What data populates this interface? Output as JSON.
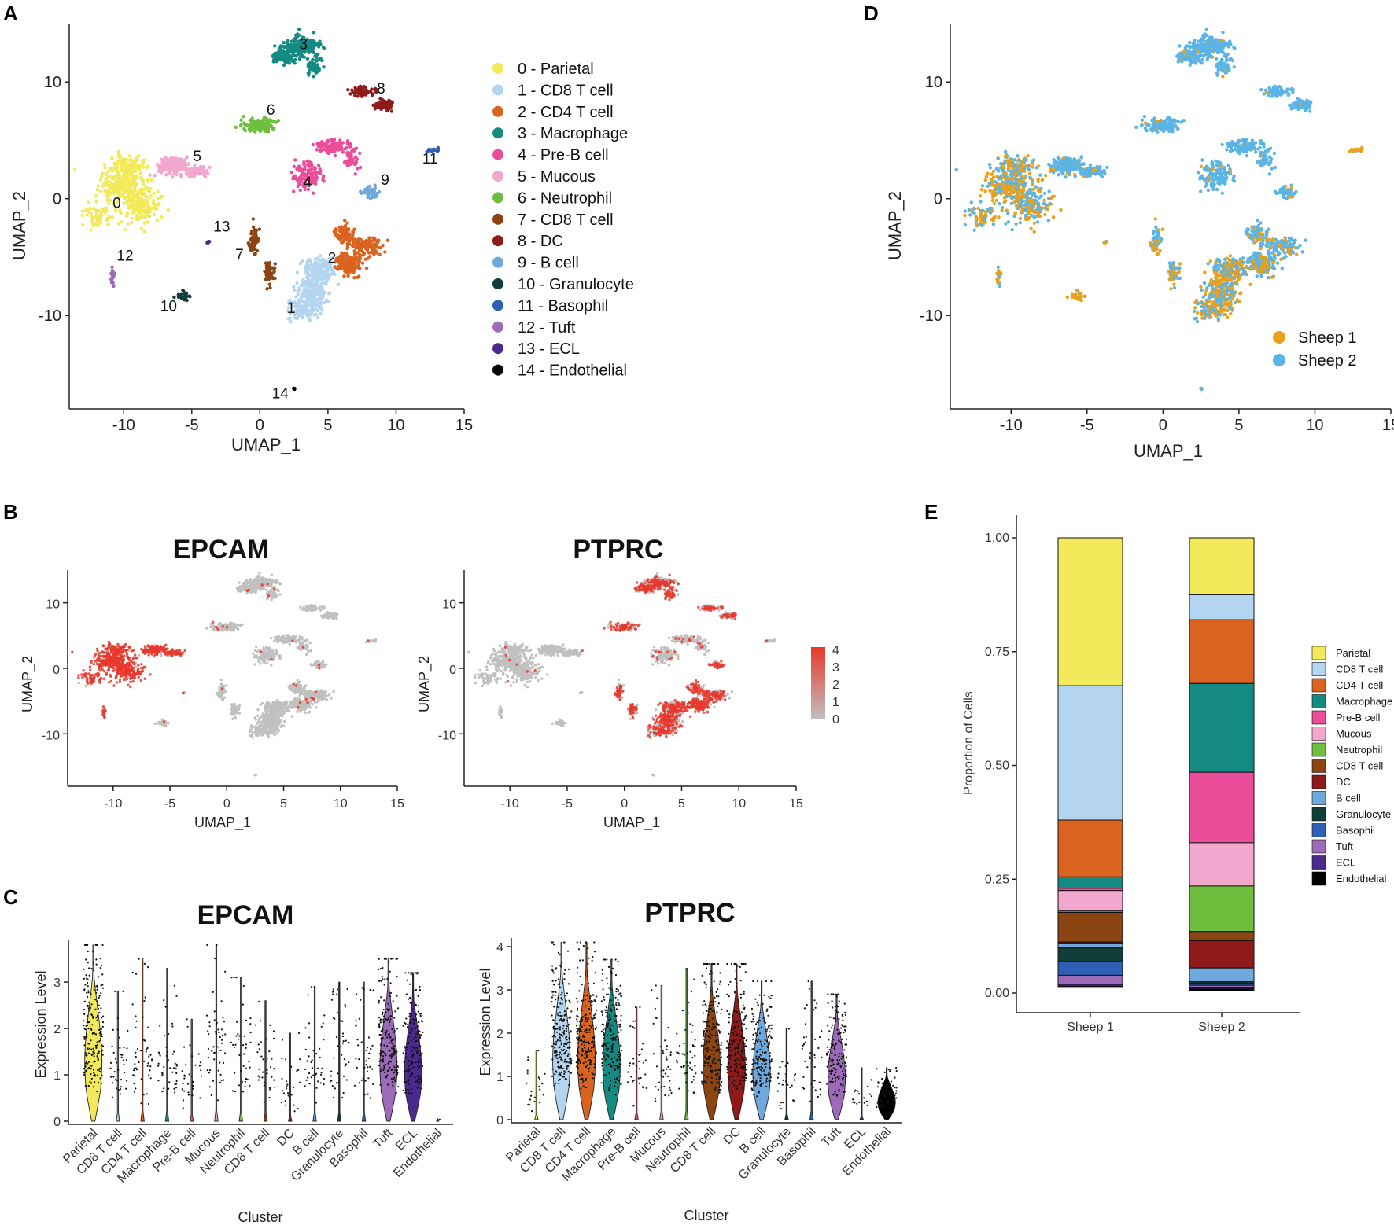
{
  "panels": {
    "A": "A",
    "B": "B",
    "C": "C",
    "D": "D",
    "E": "E"
  },
  "colors": {
    "Parietal": "#f2ea5a",
    "CD8 T cell": "#b3d5f0",
    "CD4 T cell": "#d9631f",
    "Macrophage": "#148a82",
    "Pre-B cell": "#ea4d9a",
    "Mucous": "#f2a8cc",
    "Neutrophil": "#6fbf3f",
    "CD8 T cell (7)": "#8b4513",
    "DC": "#8e1a1a",
    "B cell": "#6ea8dc",
    "Granulocyte": "#123e3a",
    "Basophil": "#2f5fb5",
    "Tuft": "#9b6ab8",
    "ECL": "#4b2a8e",
    "Endothelial": "#000000",
    "Sheep 1": "#e8a11f",
    "Sheep 2": "#5ab4e5",
    "feature_low": "#c0c0c0",
    "feature_high": "#e8372c"
  },
  "umap_axes": {
    "xlabel": "UMAP_1",
    "ylabel": "UMAP_2",
    "xticks": [
      -10,
      -5,
      0,
      5,
      10,
      15
    ],
    "yticks": [
      10,
      0,
      -10
    ],
    "xlim": [
      -14,
      15
    ],
    "ylim": [
      -18,
      15
    ]
  },
  "chart_data": [
    {
      "id": "A",
      "type": "scatter",
      "title": "",
      "xlabel": "UMAP_1",
      "ylabel": "UMAP_2",
      "legend": [
        "0 - Parietal",
        "1 - CD8 T cell",
        "2 - CD4 T cell",
        "3 - Macrophage",
        "4 - Pre-B cell",
        "5 - Mucous",
        "6 - Neutrophil",
        "7 - CD8 T cell",
        "8 - DC",
        "9 - B cell",
        "10 - Granulocyte",
        "11 - Basophil",
        "12 - Tuft",
        "13 - ECL",
        "14 - Endothelial"
      ],
      "cluster_labels": [
        {
          "label": "0",
          "x": -10.5,
          "y": -0.8
        },
        {
          "label": "1",
          "x": 2.3,
          "y": -9.8
        },
        {
          "label": "2",
          "x": 5.3,
          "y": -5.5
        },
        {
          "label": "3",
          "x": 3.2,
          "y": 12.8
        },
        {
          "label": "4",
          "x": 3.5,
          "y": 1.0
        },
        {
          "label": "5",
          "x": -4.6,
          "y": 3.2
        },
        {
          "label": "6",
          "x": 0.8,
          "y": 7.2
        },
        {
          "label": "7",
          "x": -1.5,
          "y": -5.2
        },
        {
          "label": "8",
          "x": 8.9,
          "y": 9.0
        },
        {
          "label": "9",
          "x": 9.2,
          "y": 1.2
        },
        {
          "label": "10",
          "x": -6.7,
          "y": -9.6
        },
        {
          "label": "11",
          "x": 12.5,
          "y": 3.0
        },
        {
          "label": "12",
          "x": -9.9,
          "y": -5.3
        },
        {
          "label": "13",
          "x": -2.8,
          "y": -2.8
        },
        {
          "label": "14",
          "x": 1.5,
          "y": -17.1
        }
      ]
    },
    {
      "id": "D",
      "type": "scatter",
      "xlabel": "UMAP_1",
      "ylabel": "UMAP_2",
      "legend": [
        "Sheep 1",
        "Sheep 2"
      ]
    },
    {
      "id": "B1",
      "type": "scatter",
      "title": "EPCAM",
      "xlabel": "UMAP_1",
      "ylabel": "UMAP_2",
      "colorbar_ticks": [
        4,
        3,
        2,
        1,
        0
      ]
    },
    {
      "id": "B2",
      "type": "scatter",
      "title": "PTPRC",
      "xlabel": "UMAP_1",
      "ylabel": "UMAP_2"
    },
    {
      "id": "C1",
      "type": "violin",
      "title": "EPCAM",
      "xlabel": "Cluster",
      "ylabel": "Expression Level",
      "yticks": [
        0,
        1,
        2,
        3
      ],
      "ylim": [
        0,
        3.9
      ],
      "categories": [
        "Parietal",
        "CD8 T cell",
        "CD4 T cell",
        "Macrophage",
        "Pre-B cell",
        "Mucous",
        "Neutrophil",
        "CD8 T cell",
        "DC",
        "B cell",
        "Granulocyte",
        "Basophil",
        "Tuft",
        "ECL",
        "Endothelial"
      ],
      "max_values": [
        3.8,
        2.8,
        3.5,
        3.3,
        2.2,
        3.8,
        3.1,
        2.6,
        1.9,
        2.9,
        3.0,
        3.0,
        3.5,
        3.2,
        0.05
      ]
    },
    {
      "id": "C2",
      "type": "violin",
      "title": "PTPRC",
      "xlabel": "Cluster",
      "ylabel": "Expression Level",
      "yticks": [
        0,
        1,
        2,
        3,
        4
      ],
      "ylim": [
        0,
        4.2
      ],
      "categories": [
        "Parietal",
        "CD8 T cell",
        "CD4 T cell",
        "Macrophage",
        "Pre-B cell",
        "Mucous",
        "Neutrophil",
        "CD8 T cell",
        "DC",
        "B cell",
        "Granulocyte",
        "Basophil",
        "Tuft",
        "ECL",
        "Endothelial"
      ],
      "max_values": [
        1.6,
        4.1,
        4.1,
        3.7,
        2.6,
        3.1,
        3.5,
        3.6,
        3.6,
        3.2,
        2.1,
        3.2,
        2.9,
        1.2,
        1.2
      ]
    },
    {
      "id": "E",
      "type": "bar",
      "stacked": true,
      "xlabel": "",
      "ylabel": "Proportion of Cells",
      "categories": [
        "Sheep 1",
        "Sheep 2"
      ],
      "yticks": [
        "0.00",
        "0.25",
        "0.50",
        "0.75",
        "1.00"
      ],
      "ylim": [
        0,
        1
      ],
      "series": [
        {
          "name": "Parietal",
          "values": [
            0.325,
            0.125
          ]
        },
        {
          "name": "CD8 T cell",
          "values": [
            0.295,
            0.055
          ]
        },
        {
          "name": "CD4 T cell",
          "values": [
            0.125,
            0.14
          ]
        },
        {
          "name": "Macrophage",
          "values": [
            0.025,
            0.195
          ]
        },
        {
          "name": "Pre-B cell",
          "values": [
            0.005,
            0.155
          ]
        },
        {
          "name": "Mucous",
          "values": [
            0.045,
            0.095
          ]
        },
        {
          "name": "Neutrophil",
          "values": [
            0.003,
            0.1
          ]
        },
        {
          "name": "CD8 T cell",
          "values": [
            0.065,
            0.02
          ]
        },
        {
          "name": "DC",
          "values": [
            0.003,
            0.06
          ]
        },
        {
          "name": "B cell",
          "values": [
            0.01,
            0.03
          ]
        },
        {
          "name": "Granulocyte",
          "values": [
            0.03,
            0.004
          ]
        },
        {
          "name": "Basophil",
          "values": [
            0.03,
            0.004
          ]
        },
        {
          "name": "Tuft",
          "values": [
            0.02,
            0.004
          ]
        },
        {
          "name": "ECL",
          "values": [
            0.004,
            0.004
          ]
        },
        {
          "name": "Endothelial",
          "values": [
            0.001,
            0.004
          ]
        }
      ],
      "legend": [
        "Parietal",
        "CD8 T cell",
        "CD4 T cell",
        "Macrophage",
        "Pre-B cell",
        "Mucous",
        "Neutrophil",
        "CD8 T cell",
        "DC",
        "B cell",
        "Granulocyte",
        "Basophil",
        "Tuft",
        "ECL",
        "Endothelial"
      ]
    }
  ]
}
